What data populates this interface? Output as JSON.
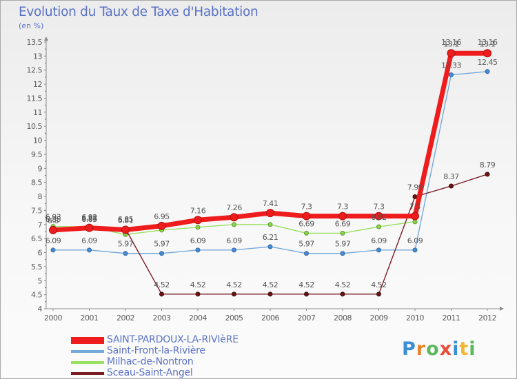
{
  "title": "Evolution du Taux de Taxe d'Habitation",
  "subtitle": "(en %)",
  "brand": {
    "letters": [
      "P",
      "r",
      "o",
      "x",
      "i",
      "t",
      "i"
    ],
    "colors": [
      "#3b8fd6",
      "#e8862b",
      "#5cb85c",
      "#e94c3b",
      "#3b8fd6",
      "#f2b632",
      "#5cb85c"
    ]
  },
  "chart_data": {
    "type": "line",
    "title": "Evolution du Taux de Taxe d'Habitation",
    "ylabel": "(en %)",
    "xlabel": "",
    "ylim": [
      4,
      13.5
    ],
    "categories": [
      "2000",
      "2001",
      "2002",
      "2003",
      "2004",
      "2005",
      "2006",
      "2007",
      "2008",
      "2009",
      "2010",
      "2011",
      "2012"
    ],
    "yticks": [
      "4",
      "4.5",
      "5",
      "5.5",
      "6",
      "6.5",
      "7",
      "7.5",
      "8",
      "8.5",
      "9",
      "9.5",
      "10",
      "10.5",
      "11",
      "11.5",
      "12",
      "12.5",
      "13",
      "13.5"
    ],
    "grid": false,
    "series": [
      {
        "name": "Milhac-de-Nontron",
        "color": "#99e060",
        "values": [
          6.93,
          6.92,
          6.64,
          6.8,
          6.9,
          7.0,
          7.0,
          6.69,
          6.69,
          6.92,
          7.1,
          13.16,
          13.16
        ],
        "labels": [
          "6.93",
          "6.92",
          "",
          "",
          "",
          "",
          "",
          "6.69",
          "6.69",
          "6.92",
          "",
          "13.16",
          "13.16"
        ]
      },
      {
        "name": "Saint-Front-la-Rivière",
        "color": "#74a9da",
        "values": [
          6.09,
          6.09,
          5.97,
          5.97,
          6.09,
          6.09,
          6.21,
          5.97,
          5.97,
          6.09,
          6.09,
          12.33,
          12.45
        ],
        "labels": [
          "6.09",
          "6.09",
          "5.97",
          "5.97",
          "6.09",
          "6.09",
          "6.21",
          "5.97",
          "5.97",
          "6.09",
          "6.09",
          "12.33",
          "12.45"
        ]
      },
      {
        "name": "Sceau-Saint-Angel",
        "color": "#7a1e24",
        "values": [
          6.85,
          6.85,
          6.85,
          4.52,
          4.52,
          4.52,
          4.52,
          4.52,
          4.52,
          4.52,
          7.99,
          8.37,
          8.79
        ],
        "labels": [
          "6.85",
          "6.85",
          "6.85",
          "4.52",
          "4.52",
          "4.52",
          "4.52",
          "4.52",
          "4.52",
          "4.52",
          "7.99",
          "8.37",
          "8.79"
        ]
      },
      {
        "name": "SAINT-PARDOUX-LA-RIVIèRE",
        "color": "#ee1c1c",
        "values": [
          6.8,
          6.88,
          6.81,
          6.95,
          7.16,
          7.26,
          7.41,
          7.3,
          7.3,
          7.3,
          7.3,
          13.1,
          13.1
        ],
        "labels": [
          "6.8",
          "6.88",
          "6.81",
          "6.95",
          "7.16",
          "7.26",
          "7.41",
          "7.3",
          "7.3",
          "7.3",
          "7.3",
          "13.1",
          "13.1"
        ]
      }
    ],
    "legend": {
      "placement": "bottom-left",
      "order": [
        "SAINT-PARDOUX-LA-RIVIèRE",
        "Saint-Front-la-Rivière",
        "Milhac-de-Nontron",
        "Sceau-Saint-Angel"
      ]
    }
  }
}
